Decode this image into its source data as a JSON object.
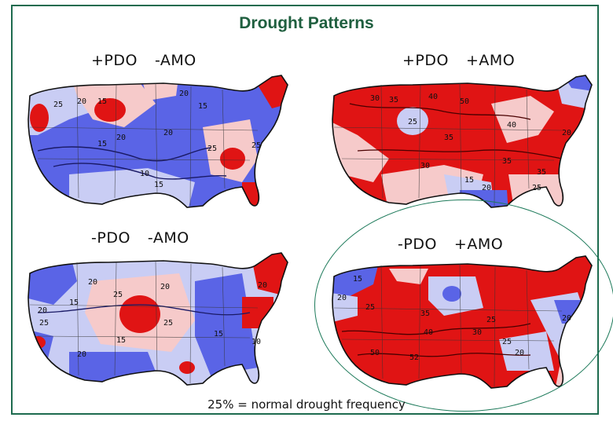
{
  "title": "Drought Patterns",
  "maps": [
    {
      "pdo": "+PDO",
      "amo": "-AMO",
      "dominant": "#5a64e6",
      "contours": [
        "25",
        "20",
        "15",
        "20",
        "15",
        "10",
        "15",
        "20",
        "25",
        "20",
        "15",
        "25"
      ]
    },
    {
      "pdo": "+PDO",
      "amo": "+AMO",
      "dominant": "#e01414",
      "contours": [
        "30",
        "35",
        "40",
        "50",
        "35",
        "25",
        "30",
        "20",
        "15",
        "25",
        "20",
        "35",
        "35",
        "40"
      ]
    },
    {
      "pdo": "-PDO",
      "amo": "-AMO",
      "dominant": "#5a64e6",
      "contours": [
        "20",
        "25",
        "15",
        "20",
        "25",
        "20",
        "25",
        "15",
        "20",
        "15",
        "10",
        "20"
      ]
    },
    {
      "pdo": "-PDO",
      "amo": "+AMO",
      "dominant": "#e01414",
      "contours": [
        "15",
        "20",
        "25",
        "35",
        "40",
        "50",
        "52",
        "30",
        "25",
        "20",
        "25",
        "20"
      ]
    }
  ],
  "caption": "25% = normal drought frequency",
  "colors": {
    "red": "#e01414",
    "pink": "#f6caca",
    "lightblue": "#c9cdf4",
    "blue": "#5a64e6",
    "frame": "#1d6b4f",
    "title": "#1f5f3f"
  }
}
